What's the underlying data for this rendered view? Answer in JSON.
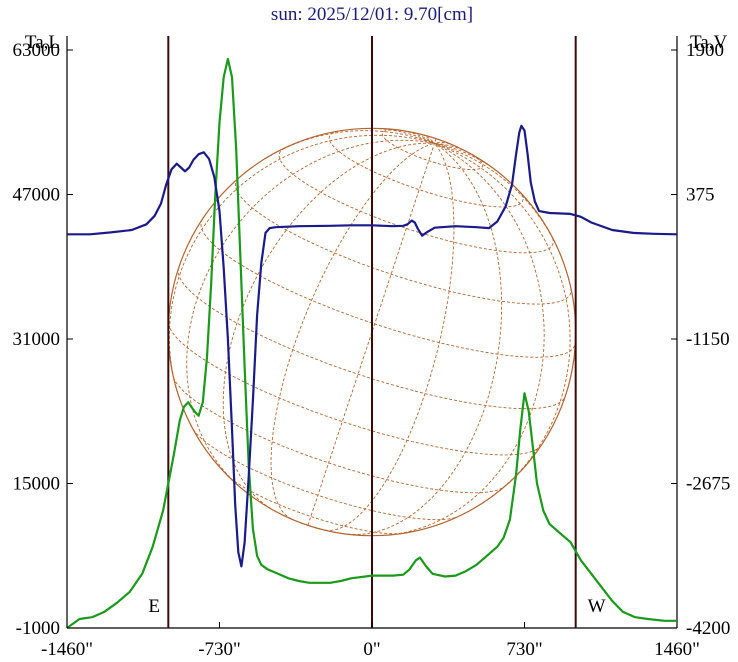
{
  "chart_data": {
    "type": "line",
    "title": "sun: 2025/12/01: 9.70[cm]",
    "left_axis": {
      "label": "Ta,L",
      "ylim": [
        -1000,
        63000
      ],
      "ticks": [
        "63000",
        "47000",
        "31000",
        "15000",
        "-1000"
      ],
      "tick_values": [
        63000,
        47000,
        31000,
        15000,
        -1000
      ]
    },
    "right_axis": {
      "label": "Ta,V",
      "ylim": [
        -4200,
        1900
      ],
      "ticks": [
        "1900",
        "375",
        "-1150",
        "-2675",
        "-4200"
      ],
      "tick_values": [
        1900,
        375,
        -1150,
        -2675,
        -4200
      ]
    },
    "x_axis": {
      "xlim": [
        -1460,
        1460
      ],
      "ticks": [
        "-1460\"",
        "-730\"",
        "0\"",
        "730\"",
        "1460\""
      ],
      "tick_values": [
        -1460,
        -730,
        0,
        730,
        1460
      ]
    },
    "limb_markers": {
      "east": {
        "label": "E",
        "x": -975
      },
      "west": {
        "label": "W",
        "x": 975
      },
      "center": {
        "x": 0
      }
    },
    "solar_disk": {
      "radius_arcsec": 975,
      "grid": true
    },
    "series": [
      {
        "axis": "left",
        "color": "#1a9a1a",
        "points": [
          [
            -1460,
            -1000
          ],
          [
            -1400,
            0
          ],
          [
            -1340,
            200
          ],
          [
            -1280,
            800
          ],
          [
            -1220,
            1800
          ],
          [
            -1160,
            3000
          ],
          [
            -1100,
            5000
          ],
          [
            -1050,
            8000
          ],
          [
            -1000,
            12000
          ],
          [
            -975,
            15000
          ],
          [
            -950,
            18000
          ],
          [
            -920,
            22000
          ],
          [
            -900,
            23500
          ],
          [
            -880,
            24000
          ],
          [
            -850,
            23000
          ],
          [
            -830,
            22500
          ],
          [
            -810,
            24000
          ],
          [
            -790,
            29000
          ],
          [
            -770,
            37000
          ],
          [
            -750,
            47000
          ],
          [
            -730,
            55000
          ],
          [
            -710,
            60000
          ],
          [
            -690,
            62000
          ],
          [
            -670,
            60000
          ],
          [
            -650,
            52000
          ],
          [
            -630,
            40000
          ],
          [
            -610,
            28000
          ],
          [
            -590,
            17000
          ],
          [
            -570,
            10000
          ],
          [
            -550,
            7000
          ],
          [
            -530,
            6000
          ],
          [
            -500,
            5500
          ],
          [
            -450,
            5000
          ],
          [
            -400,
            4500
          ],
          [
            -350,
            4200
          ],
          [
            -300,
            4000
          ],
          [
            -200,
            4000
          ],
          [
            -150,
            4200
          ],
          [
            -100,
            4500
          ],
          [
            0,
            4800
          ],
          [
            100,
            4800
          ],
          [
            150,
            4900
          ],
          [
            180,
            5500
          ],
          [
            210,
            6500
          ],
          [
            230,
            6800
          ],
          [
            260,
            5800
          ],
          [
            290,
            5000
          ],
          [
            350,
            4700
          ],
          [
            400,
            4800
          ],
          [
            450,
            5300
          ],
          [
            500,
            6000
          ],
          [
            550,
            7000
          ],
          [
            600,
            8000
          ],
          [
            630,
            9000
          ],
          [
            660,
            11000
          ],
          [
            690,
            16000
          ],
          [
            710,
            21000
          ],
          [
            730,
            25000
          ],
          [
            750,
            23000
          ],
          [
            770,
            19000
          ],
          [
            790,
            15000
          ],
          [
            820,
            12000
          ],
          [
            850,
            10500
          ],
          [
            900,
            9500
          ],
          [
            950,
            8500
          ],
          [
            1000,
            6500
          ],
          [
            1050,
            5000
          ],
          [
            1100,
            3500
          ],
          [
            1150,
            2000
          ],
          [
            1200,
            800
          ],
          [
            1260,
            200
          ],
          [
            1320,
            0
          ],
          [
            1400,
            -200
          ],
          [
            1460,
            -200
          ]
        ]
      },
      {
        "axis": "right",
        "color": "#1a1a8a",
        "points": [
          [
            -1460,
            -45
          ],
          [
            -1350,
            -45
          ],
          [
            -1250,
            -25
          ],
          [
            -1150,
            0
          ],
          [
            -1080,
            60
          ],
          [
            -1040,
            150
          ],
          [
            -1010,
            280
          ],
          [
            -985,
            480
          ],
          [
            -960,
            640
          ],
          [
            -935,
            700
          ],
          [
            -915,
            660
          ],
          [
            -895,
            620
          ],
          [
            -875,
            660
          ],
          [
            -855,
            740
          ],
          [
            -830,
            800
          ],
          [
            -805,
            820
          ],
          [
            -780,
            750
          ],
          [
            -755,
            560
          ],
          [
            -730,
            200
          ],
          [
            -710,
            -400
          ],
          [
            -690,
            -1150
          ],
          [
            -670,
            -2100
          ],
          [
            -655,
            -2900
          ],
          [
            -640,
            -3400
          ],
          [
            -625,
            -3550
          ],
          [
            -610,
            -3300
          ],
          [
            -590,
            -2600
          ],
          [
            -570,
            -1800
          ],
          [
            -550,
            -900
          ],
          [
            -530,
            -350
          ],
          [
            -510,
            -30
          ],
          [
            -490,
            20
          ],
          [
            -460,
            30
          ],
          [
            -350,
            40
          ],
          [
            -200,
            45
          ],
          [
            -100,
            50
          ],
          [
            0,
            50
          ],
          [
            100,
            40
          ],
          [
            150,
            45
          ],
          [
            170,
            60
          ],
          [
            190,
            100
          ],
          [
            205,
            80
          ],
          [
            220,
            10
          ],
          [
            240,
            -60
          ],
          [
            265,
            -20
          ],
          [
            300,
            25
          ],
          [
            400,
            40
          ],
          [
            500,
            30
          ],
          [
            560,
            20
          ],
          [
            600,
            90
          ],
          [
            640,
            250
          ],
          [
            670,
            480
          ],
          [
            690,
            800
          ],
          [
            705,
            1030
          ],
          [
            715,
            1100
          ],
          [
            730,
            1050
          ],
          [
            745,
            800
          ],
          [
            760,
            500
          ],
          [
            780,
            300
          ],
          [
            800,
            200
          ],
          [
            850,
            180
          ],
          [
            950,
            170
          ],
          [
            1000,
            140
          ],
          [
            1050,
            80
          ],
          [
            1150,
            0
          ],
          [
            1250,
            -30
          ],
          [
            1350,
            -40
          ],
          [
            1460,
            -45
          ]
        ]
      }
    ]
  }
}
